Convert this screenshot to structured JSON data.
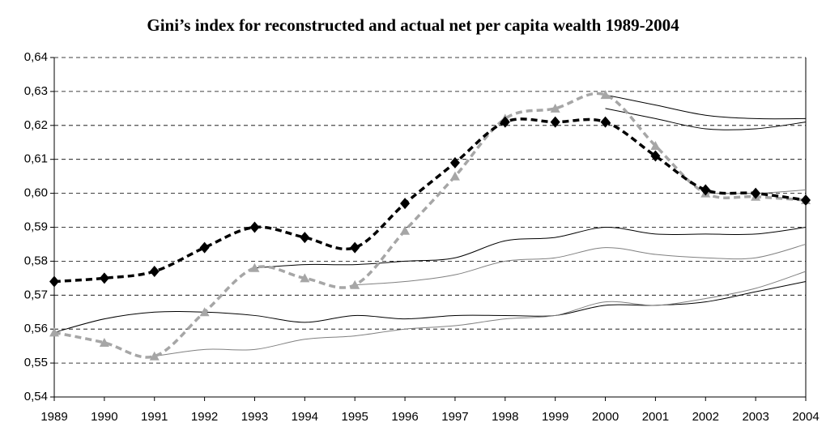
{
  "chart_data": {
    "type": "line",
    "title": "Gini’s index for reconstructed and actual net per capita wealth 1989-2004",
    "categories": [
      "1989",
      "1990",
      "1991",
      "1992",
      "1993",
      "1994",
      "1995",
      "1996",
      "1997",
      "1998",
      "1999",
      "2000",
      "2001",
      "2002",
      "2003",
      "2004"
    ],
    "ylim": [
      0.54,
      0.64
    ],
    "yticks": [
      {
        "value": 0.54,
        "label": "0,54"
      },
      {
        "value": 0.55,
        "label": "0,55"
      },
      {
        "value": 0.56,
        "label": "0,56"
      },
      {
        "value": 0.57,
        "label": "0,57"
      },
      {
        "value": 0.58,
        "label": "0,58"
      },
      {
        "value": 0.59,
        "label": "0,59"
      },
      {
        "value": 0.6,
        "label": "0,60"
      },
      {
        "value": 0.61,
        "label": "0,61"
      },
      {
        "value": 0.62,
        "label": "0,62"
      },
      {
        "value": 0.63,
        "label": "0,63"
      },
      {
        "value": 0.64,
        "label": "0,64"
      }
    ],
    "grid": true,
    "series": [
      {
        "color": "#000000",
        "dashed": false,
        "values": [
          null,
          null,
          null,
          null,
          0.578,
          0.579,
          0.579,
          0.58,
          0.581,
          0.586,
          0.587,
          0.59,
          0.588,
          0.588,
          0.588,
          0.59
        ]
      },
      {
        "color": "#808080",
        "dashed": false,
        "values": [
          null,
          null,
          null,
          null,
          null,
          null,
          0.573,
          0.574,
          0.576,
          0.58,
          0.581,
          0.584,
          0.582,
          0.581,
          0.581,
          0.585
        ]
      },
      {
        "color": "#000000",
        "dashed": false,
        "values": [
          0.559,
          0.563,
          0.565,
          0.565,
          0.564,
          0.562,
          0.564,
          0.563,
          0.564,
          0.564,
          0.564,
          0.567,
          0.567,
          0.568,
          0.571,
          0.574
        ]
      },
      {
        "color": "#808080",
        "dashed": false,
        "values": [
          null,
          null,
          0.552,
          0.554,
          0.554,
          0.557,
          0.558,
          0.56,
          0.561,
          0.563,
          0.564,
          0.568,
          0.567,
          0.569,
          0.572,
          0.577
        ]
      },
      {
        "color": "#000000",
        "dashed": false,
        "values": [
          null,
          null,
          null,
          null,
          null,
          null,
          null,
          null,
          null,
          null,
          null,
          0.625,
          0.622,
          0.619,
          0.619,
          0.621
        ]
      },
      {
        "color": "#000000",
        "dashed": false,
        "values": [
          null,
          null,
          null,
          null,
          null,
          null,
          null,
          null,
          null,
          null,
          null,
          0.629,
          0.626,
          0.623,
          0.622,
          0.622
        ]
      },
      {
        "color": "#808080",
        "dashed": false,
        "values": [
          null,
          null,
          null,
          null,
          null,
          null,
          null,
          null,
          null,
          null,
          null,
          null,
          null,
          0.6,
          0.6,
          0.601
        ]
      },
      {
        "color": "#a6a6a6",
        "dashed": true,
        "marker": "triangle",
        "values": [
          0.559,
          0.556,
          0.552,
          0.565,
          0.578,
          0.575,
          0.573,
          0.589,
          0.605,
          0.622,
          0.625,
          0.629,
          0.614,
          0.6,
          0.599,
          0.598
        ]
      },
      {
        "color": "#000000",
        "dashed": true,
        "marker": "diamond",
        "values": [
          0.574,
          0.575,
          0.577,
          0.584,
          0.59,
          0.587,
          0.584,
          0.597,
          0.609,
          0.621,
          0.621,
          0.621,
          0.611,
          0.601,
          0.6,
          0.598
        ]
      }
    ]
  }
}
